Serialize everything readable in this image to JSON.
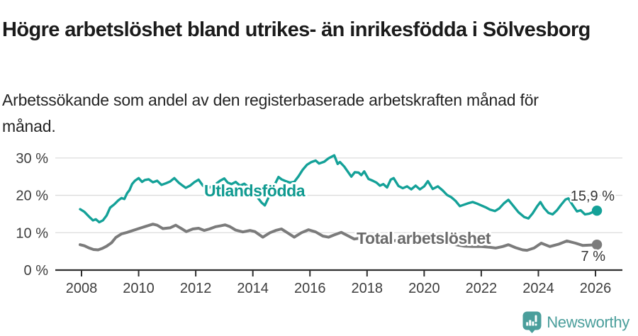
{
  "header": {
    "title": "Högre arbetslöshet bland utrikes- än inrikesfödda i Sölvesborg",
    "subtitle": "Arbetssökande som andel av den registerbaserade arbetskraften månad för månad."
  },
  "chart_data": {
    "type": "line",
    "title": "Högre arbetslöshet bland utrikes- än inrikesfödda i Sölvesborg",
    "subtitle": "Arbetssökande som andel av den registerbaserade arbetskraften månad för månad.",
    "x_ticks": [
      2008,
      2010,
      2012,
      2014,
      2016,
      2018,
      2020,
      2022,
      2024,
      2026
    ],
    "y_ticks": [
      0,
      10,
      20,
      30
    ],
    "y_tick_suffix": " %",
    "xlim": [
      2007.9,
      2026.9
    ],
    "ylim": [
      0,
      33
    ],
    "grid": true,
    "legend_position": "inline-labels",
    "series": [
      {
        "name": "Utlandsfödda",
        "color": "#14a198",
        "label_color": "#0f9a90",
        "end_label": "15,9 %",
        "last_value": 15.9,
        "points": [
          [
            2007.95,
            16.3
          ],
          [
            2008.1,
            15.6
          ],
          [
            2008.25,
            14.4
          ],
          [
            2008.4,
            13.3
          ],
          [
            2008.5,
            13.6
          ],
          [
            2008.62,
            12.8
          ],
          [
            2008.75,
            13.3
          ],
          [
            2008.88,
            14.6
          ],
          [
            2009.0,
            16.7
          ],
          [
            2009.15,
            17.6
          ],
          [
            2009.28,
            18.6
          ],
          [
            2009.4,
            19.3
          ],
          [
            2009.5,
            19.0
          ],
          [
            2009.6,
            20.6
          ],
          [
            2009.68,
            21.4
          ],
          [
            2009.77,
            23.0
          ],
          [
            2009.87,
            23.9
          ],
          [
            2010.0,
            24.6
          ],
          [
            2010.12,
            23.6
          ],
          [
            2010.22,
            24.1
          ],
          [
            2010.35,
            24.3
          ],
          [
            2010.5,
            23.5
          ],
          [
            2010.65,
            23.9
          ],
          [
            2010.8,
            22.8
          ],
          [
            2010.95,
            23.2
          ],
          [
            2011.1,
            23.7
          ],
          [
            2011.25,
            24.6
          ],
          [
            2011.4,
            23.4
          ],
          [
            2011.52,
            22.7
          ],
          [
            2011.65,
            22.0
          ],
          [
            2011.8,
            22.6
          ],
          [
            2011.95,
            23.5
          ],
          [
            2012.1,
            24.2
          ],
          [
            2012.25,
            22.6
          ],
          [
            2012.4,
            21.7
          ],
          [
            2012.55,
            22.4
          ],
          [
            2012.7,
            23.0
          ],
          [
            2012.85,
            23.9
          ],
          [
            2013.0,
            24.5
          ],
          [
            2013.12,
            23.4
          ],
          [
            2013.25,
            23.0
          ],
          [
            2013.4,
            23.6
          ],
          [
            2013.55,
            22.6
          ],
          [
            2013.7,
            23.1
          ],
          [
            2013.85,
            22.2
          ],
          [
            2014.0,
            21.2
          ],
          [
            2014.15,
            19.6
          ],
          [
            2014.3,
            18.1
          ],
          [
            2014.42,
            17.3
          ],
          [
            2014.55,
            19.4
          ],
          [
            2014.68,
            21.4
          ],
          [
            2014.8,
            23.4
          ],
          [
            2014.9,
            24.9
          ],
          [
            2015.0,
            24.3
          ],
          [
            2015.15,
            23.8
          ],
          [
            2015.3,
            23.4
          ],
          [
            2015.45,
            23.6
          ],
          [
            2015.6,
            25.1
          ],
          [
            2015.75,
            26.9
          ],
          [
            2015.9,
            28.2
          ],
          [
            2016.05,
            28.9
          ],
          [
            2016.2,
            29.3
          ],
          [
            2016.32,
            28.5
          ],
          [
            2016.5,
            29.0
          ],
          [
            2016.65,
            29.9
          ],
          [
            2016.85,
            30.7
          ],
          [
            2016.97,
            28.4
          ],
          [
            2017.05,
            28.9
          ],
          [
            2017.2,
            27.7
          ],
          [
            2017.32,
            26.4
          ],
          [
            2017.45,
            25.0
          ],
          [
            2017.57,
            26.2
          ],
          [
            2017.7,
            26.1
          ],
          [
            2017.8,
            25.4
          ],
          [
            2017.9,
            26.4
          ],
          [
            2018.05,
            24.4
          ],
          [
            2018.2,
            23.9
          ],
          [
            2018.33,
            23.4
          ],
          [
            2018.45,
            22.6
          ],
          [
            2018.57,
            23.0
          ],
          [
            2018.7,
            22.1
          ],
          [
            2018.83,
            24.2
          ],
          [
            2018.93,
            24.6
          ],
          [
            2019.1,
            22.5
          ],
          [
            2019.25,
            21.9
          ],
          [
            2019.4,
            22.4
          ],
          [
            2019.55,
            21.6
          ],
          [
            2019.7,
            22.6
          ],
          [
            2019.85,
            21.6
          ],
          [
            2020.0,
            22.4
          ],
          [
            2020.13,
            23.8
          ],
          [
            2020.3,
            21.7
          ],
          [
            2020.48,
            22.4
          ],
          [
            2020.65,
            21.3
          ],
          [
            2020.8,
            20.1
          ],
          [
            2020.95,
            19.5
          ],
          [
            2021.1,
            18.5
          ],
          [
            2021.25,
            17.1
          ],
          [
            2021.4,
            17.5
          ],
          [
            2021.55,
            17.9
          ],
          [
            2021.7,
            18.2
          ],
          [
            2021.85,
            17.8
          ],
          [
            2022.0,
            17.3
          ],
          [
            2022.15,
            16.8
          ],
          [
            2022.3,
            16.2
          ],
          [
            2022.48,
            15.8
          ],
          [
            2022.63,
            16.5
          ],
          [
            2022.8,
            17.9
          ],
          [
            2022.95,
            18.8
          ],
          [
            2023.1,
            17.4
          ],
          [
            2023.3,
            15.5
          ],
          [
            2023.5,
            14.2
          ],
          [
            2023.65,
            13.8
          ],
          [
            2023.8,
            15.2
          ],
          [
            2023.95,
            17.0
          ],
          [
            2024.07,
            18.2
          ],
          [
            2024.2,
            16.6
          ],
          [
            2024.35,
            15.3
          ],
          [
            2024.5,
            14.9
          ],
          [
            2024.65,
            16.0
          ],
          [
            2024.8,
            17.5
          ],
          [
            2024.95,
            18.9
          ],
          [
            2025.05,
            19.2
          ],
          [
            2025.2,
            17.4
          ],
          [
            2025.35,
            15.7
          ],
          [
            2025.48,
            16.0
          ],
          [
            2025.63,
            14.9
          ],
          [
            2025.78,
            15.1
          ],
          [
            2025.9,
            15.5
          ],
          [
            2026.05,
            15.9
          ]
        ]
      },
      {
        "name": "Total arbetslöshet",
        "color": "#7b7b7b",
        "label_color": "#6b6b6b",
        "end_label": "7 %",
        "last_value": 7,
        "points": [
          [
            2007.95,
            6.8
          ],
          [
            2008.1,
            6.5
          ],
          [
            2008.27,
            5.9
          ],
          [
            2008.42,
            5.5
          ],
          [
            2008.58,
            5.4
          ],
          [
            2008.73,
            5.8
          ],
          [
            2008.88,
            6.4
          ],
          [
            2009.05,
            7.3
          ],
          [
            2009.2,
            8.7
          ],
          [
            2009.4,
            9.7
          ],
          [
            2009.6,
            10.1
          ],
          [
            2009.8,
            10.6
          ],
          [
            2010.0,
            11.1
          ],
          [
            2010.25,
            11.7
          ],
          [
            2010.5,
            12.3
          ],
          [
            2010.65,
            12.0
          ],
          [
            2010.85,
            11.1
          ],
          [
            2011.1,
            11.3
          ],
          [
            2011.3,
            12.0
          ],
          [
            2011.5,
            11.1
          ],
          [
            2011.67,
            10.3
          ],
          [
            2011.9,
            11.0
          ],
          [
            2012.1,
            11.2
          ],
          [
            2012.3,
            10.6
          ],
          [
            2012.48,
            11.0
          ],
          [
            2012.7,
            11.6
          ],
          [
            2012.9,
            11.9
          ],
          [
            2013.03,
            12.1
          ],
          [
            2013.2,
            11.6
          ],
          [
            2013.4,
            10.7
          ],
          [
            2013.65,
            10.2
          ],
          [
            2013.9,
            10.6
          ],
          [
            2014.07,
            10.3
          ],
          [
            2014.35,
            8.8
          ],
          [
            2014.6,
            10.0
          ],
          [
            2014.8,
            10.6
          ],
          [
            2015.0,
            11.0
          ],
          [
            2015.25,
            9.8
          ],
          [
            2015.45,
            8.8
          ],
          [
            2015.7,
            10.0
          ],
          [
            2015.95,
            10.8
          ],
          [
            2016.2,
            10.2
          ],
          [
            2016.45,
            9.1
          ],
          [
            2016.65,
            8.8
          ],
          [
            2016.85,
            9.4
          ],
          [
            2017.1,
            10.1
          ],
          [
            2017.35,
            9.1
          ],
          [
            2017.55,
            8.3
          ],
          [
            2017.8,
            8.6
          ],
          [
            2018.1,
            8.4
          ],
          [
            2018.4,
            7.8
          ],
          [
            2018.7,
            7.6
          ],
          [
            2019.0,
            7.9
          ],
          [
            2019.3,
            7.4
          ],
          [
            2019.6,
            7.1
          ],
          [
            2019.9,
            7.3
          ],
          [
            2020.2,
            7.9
          ],
          [
            2020.5,
            7.6
          ],
          [
            2020.8,
            7.2
          ],
          [
            2021.1,
            6.8
          ],
          [
            2021.4,
            6.4
          ],
          [
            2021.7,
            6.3
          ],
          [
            2022.0,
            6.3
          ],
          [
            2022.3,
            6.1
          ],
          [
            2022.5,
            5.9
          ],
          [
            2022.75,
            6.3
          ],
          [
            2022.95,
            6.8
          ],
          [
            2023.2,
            6.0
          ],
          [
            2023.45,
            5.4
          ],
          [
            2023.6,
            5.3
          ],
          [
            2023.85,
            5.9
          ],
          [
            2024.1,
            7.2
          ],
          [
            2024.4,
            6.3
          ],
          [
            2024.7,
            6.9
          ],
          [
            2025.0,
            7.8
          ],
          [
            2025.3,
            7.2
          ],
          [
            2025.55,
            6.6
          ],
          [
            2025.8,
            6.7
          ],
          [
            2026.05,
            6.8
          ]
        ]
      }
    ]
  },
  "footer": {
    "brand": "Newsworthy",
    "brand_color": "#4a9e9b",
    "logo_icon": "newsworthy-logo-icon"
  }
}
